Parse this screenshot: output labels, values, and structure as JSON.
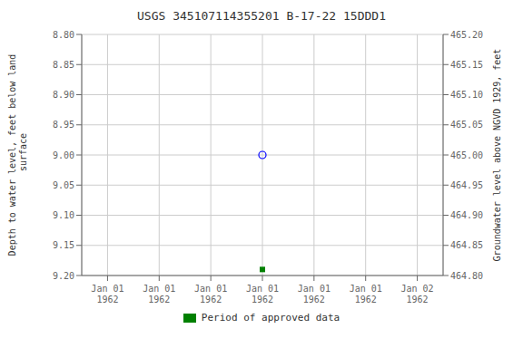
{
  "chart_data": {
    "type": "scatter",
    "title": "USGS 345107114355201 B-17-22 15DDD1",
    "categories": [
      "Jan 01\n1962",
      "Jan 01\n1962",
      "Jan 01\n1962",
      "Jan 01\n1962",
      "Jan 01\n1962",
      "Jan 01\n1962",
      "Jan 02\n1962"
    ],
    "series": [
      {
        "color": "blue",
        "marker": "circle",
        "values": [
          null,
          null,
          null,
          9.0,
          null,
          null,
          null
        ]
      },
      {
        "name": "Period of approved data",
        "color": "#008000",
        "marker": "square",
        "values": [
          null,
          null,
          null,
          9.19,
          null,
          null,
          null
        ]
      }
    ],
    "ylabel": "Depth to water level, feet below land\n surface",
    "y2label": "Groundwater level above NGVD 1929, feet",
    "ylim": [
      9.2,
      8.8
    ],
    "yticks": [
      {
        "value": 8.8,
        "label": "8.80"
      },
      8.85,
      {
        "value": 8.9,
        "label": "8.90"
      },
      8.95,
      {
        "value": 9.0,
        "label": "9.00"
      },
      9.05,
      {
        "value": 9.1,
        "label": "9.10"
      },
      9.15,
      {
        "value": 9.2,
        "label": "9.20"
      }
    ],
    "y2lim": [
      464.8,
      465.2
    ],
    "y2ticks": [
      {
        "value": 464.8,
        "label": "464.80"
      },
      464.85,
      {
        "value": 464.9,
        "label": "464.90"
      },
      464.95,
      {
        "value": 465.0,
        "label": "465.00"
      },
      465.05,
      {
        "value": 465.1,
        "label": "465.10"
      },
      465.15,
      {
        "value": 465.2,
        "label": "465.20"
      }
    ],
    "grid": true,
    "legend": "bottom"
  }
}
